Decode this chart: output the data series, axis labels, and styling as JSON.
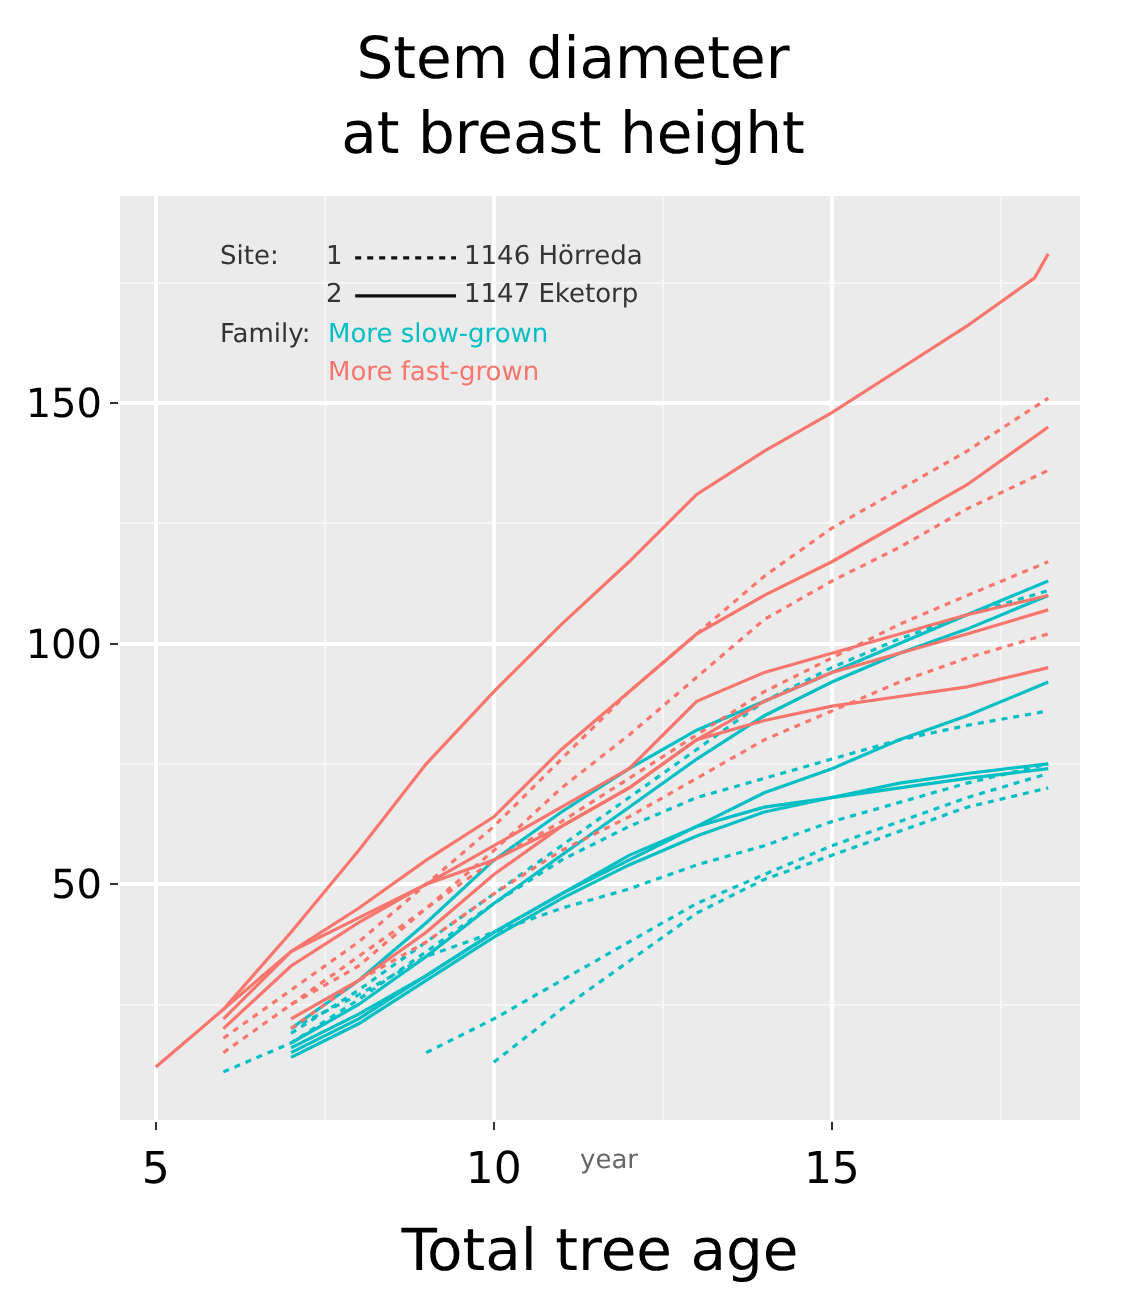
{
  "chart_data": {
    "type": "line",
    "title": "Stem diameter\nat breast height",
    "xlabel": "Total tree age",
    "xlim": [
      4.47,
      18.67
    ],
    "xticks": [
      5,
      10,
      15
    ],
    "ylim": [
      1,
      193
    ],
    "yticks": [
      50,
      100,
      150
    ],
    "grid": true,
    "series": [
      {
        "color": "#00bfc4",
        "line_style": "dotted",
        "x": [
          6,
          7,
          8,
          9,
          10,
          11,
          12,
          13,
          14,
          15,
          16,
          17,
          18.2
        ],
        "values": [
          11,
          17,
          26,
          36,
          46,
          55,
          62,
          68,
          72,
          76,
          80,
          83,
          86
        ]
      },
      {
        "color": "#00bfc4",
        "line_style": "dotted",
        "x": [
          7,
          8,
          9,
          10,
          11,
          12,
          13,
          14,
          15,
          16,
          17,
          18.2
        ],
        "values": [
          19,
          28,
          38,
          48,
          58,
          68,
          78,
          88,
          95,
          101,
          106,
          111
        ]
      },
      {
        "color": "#00bfc4",
        "line_style": "dotted",
        "x": [
          9,
          10,
          11,
          12,
          13,
          14,
          15,
          16,
          17,
          18.2
        ],
        "values": [
          15,
          22,
          30,
          38,
          46,
          52,
          58,
          63,
          68,
          73
        ]
      },
      {
        "color": "#00bfc4",
        "line_style": "dotted",
        "x": [
          10,
          11,
          12,
          13,
          14,
          15,
          16,
          17,
          18.2
        ],
        "values": [
          13,
          24,
          34,
          44,
          51,
          56,
          61,
          66,
          70
        ]
      },
      {
        "color": "#00bfc4",
        "line_style": "dotted",
        "x": [
          7,
          8,
          9,
          10,
          11,
          12,
          13,
          14,
          15,
          16,
          17,
          18.2
        ],
        "values": [
          20,
          27,
          35,
          40,
          45,
          49,
          54,
          58,
          63,
          67,
          71,
          75
        ]
      },
      {
        "color": "#00bfc4",
        "line_style": "solid",
        "x": [
          7,
          8,
          9,
          10,
          11,
          12,
          13,
          14,
          15,
          16,
          17,
          18.2
        ],
        "values": [
          20,
          30,
          42,
          55,
          65,
          74,
          82,
          88,
          94,
          100,
          106,
          113
        ]
      },
      {
        "color": "#00bfc4",
        "line_style": "solid",
        "x": [
          7,
          8,
          9,
          10,
          11,
          12,
          13,
          14,
          15,
          16,
          17,
          18.2
        ],
        "values": [
          17,
          25,
          35,
          46,
          56,
          66,
          76,
          85,
          92,
          98,
          103,
          110
        ]
      },
      {
        "color": "#00bfc4",
        "line_style": "solid",
        "x": [
          7,
          8,
          9,
          10,
          11,
          12,
          13,
          14,
          15,
          16,
          17,
          18.2
        ],
        "values": [
          15,
          22,
          31,
          40,
          48,
          55,
          62,
          69,
          74,
          80,
          85,
          92
        ]
      },
      {
        "color": "#00bfc4",
        "line_style": "solid",
        "x": [
          7,
          8,
          9,
          10,
          11,
          12,
          13,
          14,
          15,
          16,
          17,
          18.2
        ],
        "values": [
          14,
          21,
          30,
          39,
          47,
          54,
          60,
          65,
          68,
          71,
          73,
          75
        ]
      },
      {
        "color": "#00bfc4",
        "line_style": "solid",
        "x": [
          7,
          8,
          9,
          10,
          11,
          12,
          13,
          14,
          15,
          16,
          17,
          18.2
        ],
        "values": [
          16,
          23,
          31,
          40,
          48,
          56,
          62,
          66,
          68,
          70,
          72,
          74
        ]
      },
      {
        "color": "#f8766d",
        "line_style": "dotted",
        "x": [
          6,
          7,
          8,
          9,
          10,
          11,
          12,
          13,
          14,
          15,
          16,
          17,
          18.2
        ],
        "values": [
          18,
          28,
          38,
          50,
          62,
          76,
          90,
          102,
          114,
          124,
          132,
          140,
          151
        ]
      },
      {
        "color": "#f8766d",
        "line_style": "dotted",
        "x": [
          6,
          7,
          8,
          9,
          10,
          11,
          12,
          13,
          14,
          15,
          16,
          17,
          18.2
        ],
        "values": [
          15,
          25,
          33,
          45,
          57,
          70,
          81,
          93,
          105,
          113,
          120,
          128,
          136
        ]
      },
      {
        "color": "#f8766d",
        "line_style": "dotted",
        "x": [
          7,
          8,
          9,
          10,
          11,
          12,
          13,
          14,
          15,
          16,
          17,
          18.2
        ],
        "values": [
          25,
          35,
          45,
          55,
          63,
          72,
          81,
          90,
          97,
          104,
          110,
          117
        ]
      },
      {
        "color": "#f8766d",
        "line_style": "dotted",
        "x": [
          7,
          8,
          9,
          10,
          11,
          12,
          13,
          14,
          15,
          16,
          17,
          18.2
        ],
        "values": [
          20,
          30,
          38,
          48,
          57,
          64,
          72,
          80,
          86,
          92,
          97,
          102
        ]
      },
      {
        "color": "#f8766d",
        "line_style": "solid",
        "x": [
          5,
          6,
          7,
          8,
          9,
          10,
          11,
          12,
          13,
          14,
          15,
          16,
          17,
          18,
          18.2
        ],
        "values": [
          12,
          24,
          40,
          57,
          75,
          90,
          104,
          117,
          131,
          140,
          148,
          157,
          166,
          176,
          181
        ]
      },
      {
        "color": "#f8766d",
        "line_style": "solid",
        "x": [
          6,
          7,
          8,
          9,
          10,
          11,
          12,
          13,
          14,
          15,
          16,
          17,
          18.2
        ],
        "values": [
          22,
          36,
          45,
          55,
          64,
          78,
          90,
          102,
          110,
          117,
          125,
          133,
          145
        ]
      },
      {
        "color": "#f8766d",
        "line_style": "solid",
        "x": [
          6,
          7,
          8,
          9,
          10,
          11,
          12,
          13,
          14,
          15,
          16,
          17,
          18.2
        ],
        "values": [
          20,
          33,
          42,
          50,
          58,
          66,
          74,
          88,
          94,
          98,
          102,
          106,
          110
        ]
      },
      {
        "color": "#f8766d",
        "line_style": "solid",
        "x": [
          6,
          7,
          8,
          9,
          10,
          11,
          12,
          13,
          14,
          15,
          16,
          17,
          18.2
        ],
        "values": [
          24,
          36,
          43,
          50,
          55,
          62,
          70,
          80,
          84,
          87,
          89,
          91,
          95
        ]
      },
      {
        "color": "#f8766d",
        "line_style": "solid",
        "x": [
          7,
          8,
          9,
          10,
          11,
          12,
          13,
          14,
          15,
          16,
          17,
          18.2
        ],
        "values": [
          22,
          30,
          40,
          52,
          62,
          70,
          80,
          88,
          94,
          98,
          102,
          107
        ]
      }
    ],
    "annotations": [
      "Site:",
      "1",
      "1146 Hörreda",
      "2",
      "1147 Eketorp",
      "Family:",
      "More slow-grown",
      "More fast-grown",
      "year"
    ]
  }
}
